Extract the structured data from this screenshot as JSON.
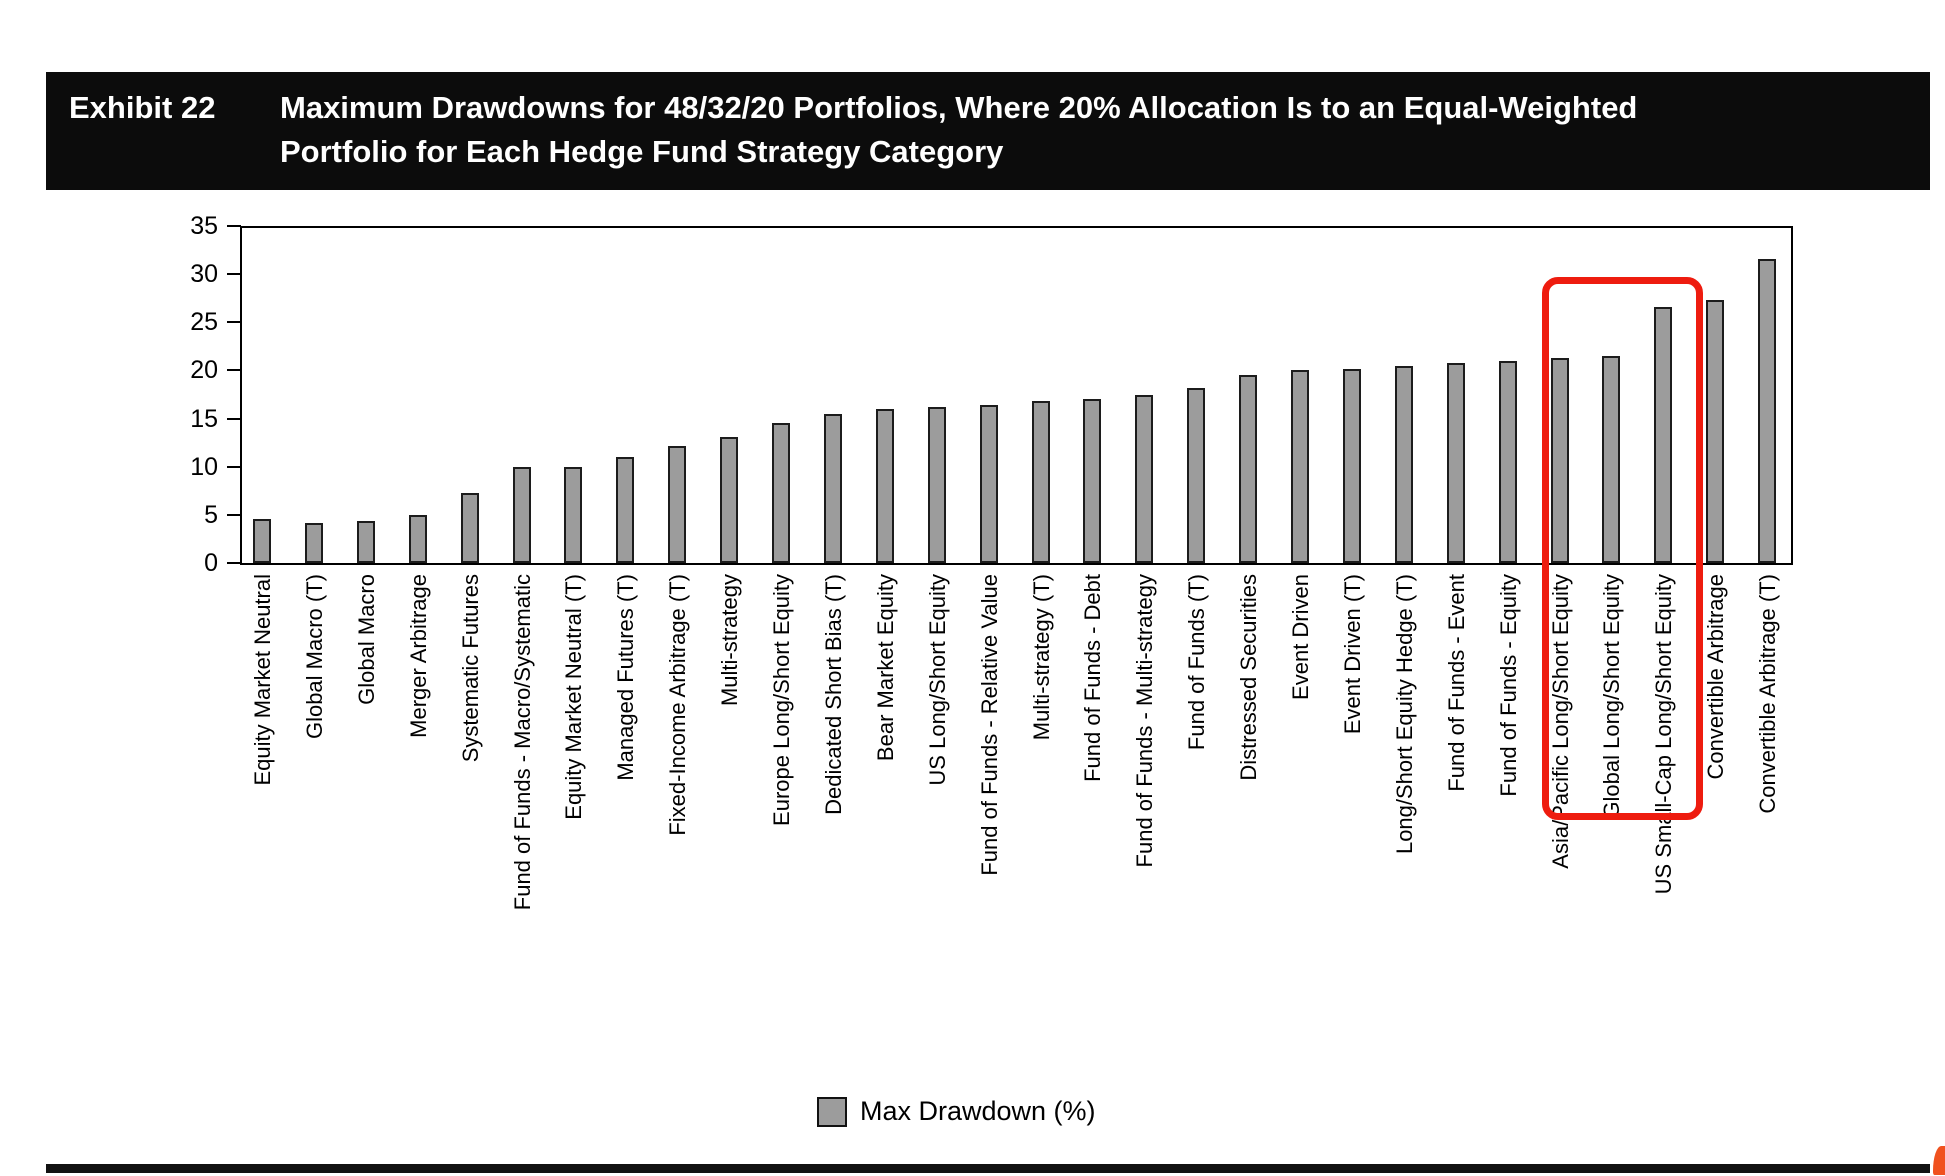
{
  "exhibit": {
    "label": "Exhibit 22",
    "title_line1": "Maximum Drawdowns for 48/32/20 Portfolios, Where 20% Allocation Is to an Equal-Weighted",
    "title_line2": "Portfolio for Each Hedge Fund Strategy Category"
  },
  "chart_data": {
    "type": "bar",
    "title": "Maximum Drawdowns for 48/32/20 Portfolios, Where 20% Allocation Is to an Equal-Weighted Portfolio for Each Hedge Fund Strategy Category",
    "categories": [
      "Equity Market Neutral",
      "Global Macro (T)",
      "Global Macro",
      "Merger Arbitrage",
      "Systematic Futures",
      "Fund of Funds - Macro/Systematic",
      "Equity Market Neutral (T)",
      "Managed Futures (T)",
      "Fixed-Income Arbitrage (T)",
      "Multi-strategy",
      "Europe Long/Short Equity",
      "Dedicated Short Bias (T)",
      "Bear Market Equity",
      "US Long/Short Equity",
      "Fund of Funds - Relative Value",
      "Multi-strategy (T)",
      "Fund of Funds - Debt",
      "Fund of Funds - Multi-strategy",
      "Fund of Funds (T)",
      "Distressed Securities",
      "Event Driven",
      "Event Driven (T)",
      "Long/Short Equity Hedge (T)",
      "Fund of Funds - Event",
      "Fund of Funds - Equity",
      "Asia/Pacific Long/Short Equity",
      "Global Long/Short Equity",
      "US Small-Cap Long/Short Equity",
      "Convertible Arbitrage",
      "Convertible Arbitrage (T)"
    ],
    "values": [
      4.6,
      4.2,
      4.4,
      5.0,
      7.3,
      10.0,
      10.0,
      11.0,
      12.2,
      13.1,
      14.5,
      15.5,
      16.0,
      16.2,
      16.4,
      16.8,
      17.0,
      17.4,
      18.2,
      19.5,
      20.0,
      20.2,
      20.5,
      20.8,
      21.0,
      21.3,
      21.5,
      26.6,
      27.3,
      31.6
    ],
    "xlabel": "",
    "ylabel": "",
    "ylim": [
      0,
      35
    ],
    "yticks": [
      0,
      5,
      10,
      15,
      20,
      25,
      30,
      35
    ],
    "grid": false,
    "legend_position": "bottom-center",
    "bar_color": "#9c9c9c",
    "bar_border_color": "#1c1c1c",
    "legend": {
      "label": "Max Drawdown (%)",
      "swatch_color": "#9c9c9c"
    },
    "highlight": {
      "categories": [
        "Asia/Pacific Long/Short Equity",
        "Global Long/Short Equity",
        "US Small-Cap Long/Short Equity"
      ],
      "start_index": 25,
      "end_index": 27,
      "color": "#ee1c0f"
    }
  },
  "footer": {
    "rule_color": "#121212",
    "corner_mark_color": "#f0511e"
  }
}
